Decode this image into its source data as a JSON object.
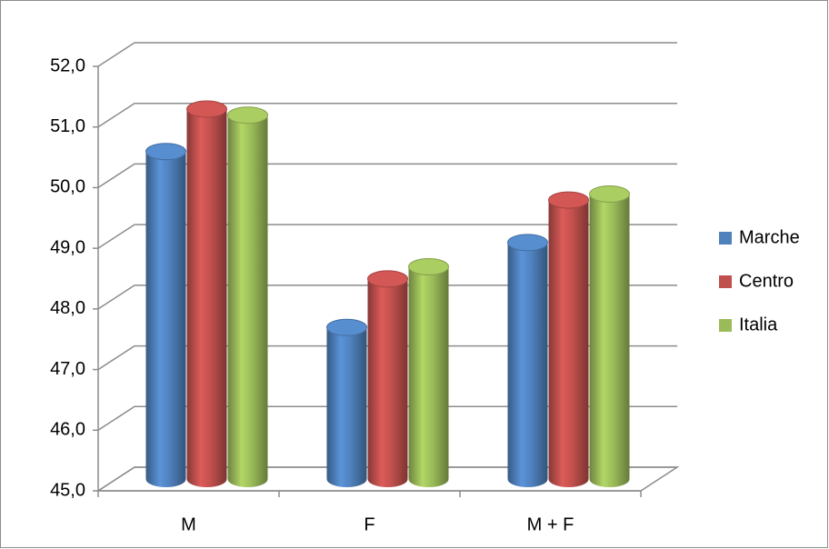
{
  "chart_data": {
    "type": "bar3d",
    "categories": [
      "M",
      "F",
      "M + F"
    ],
    "series": [
      {
        "name": "Marche",
        "color": "#4f81bd",
        "values": [
          50.4,
          47.5,
          48.9
        ]
      },
      {
        "name": "Centro",
        "color": "#c0504d",
        "values": [
          51.1,
          48.3,
          49.6
        ]
      },
      {
        "name": "Italia",
        "color": "#9bbb59",
        "values": [
          51.0,
          48.5,
          49.7
        ]
      }
    ],
    "ylim": [
      45,
      52
    ],
    "yticks": [
      {
        "value": 45,
        "label": "45,0"
      },
      {
        "value": 46,
        "label": "46,0"
      },
      {
        "value": 47,
        "label": "47,0"
      },
      {
        "value": 48,
        "label": "48,0"
      },
      {
        "value": 49,
        "label": "49,0"
      },
      {
        "value": 50,
        "label": "50,0"
      },
      {
        "value": 51,
        "label": "51,0"
      },
      {
        "value": 52,
        "label": "52,0"
      }
    ],
    "grid": true,
    "legend": "right"
  }
}
